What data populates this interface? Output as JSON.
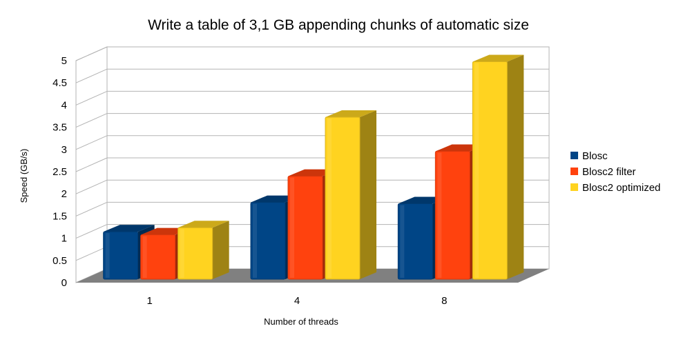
{
  "chart_data": {
    "type": "bar",
    "title": "Write a table of 3,1 GB appending chunks of automatic size",
    "xlabel": "Number of threads",
    "ylabel": "Speed (GB/s)",
    "categories": [
      "1",
      "4",
      "8"
    ],
    "yticks": [
      "0",
      "0.5",
      "1",
      "1.5",
      "2",
      "2.5",
      "3",
      "3.5",
      "4",
      "4.5",
      "5"
    ],
    "ylim": [
      0,
      5
    ],
    "grid": true,
    "legend_position": "right",
    "series": [
      {
        "name": "Blosc",
        "values": [
          1.07,
          1.73,
          1.7
        ],
        "color": "#004586"
      },
      {
        "name": "Blosc2 filter",
        "values": [
          1.0,
          2.32,
          2.88
        ],
        "color": "#ff420e"
      },
      {
        "name": "Blosc2 optimized",
        "values": [
          1.16,
          3.65,
          4.9
        ],
        "color": "#ffd320"
      }
    ]
  }
}
